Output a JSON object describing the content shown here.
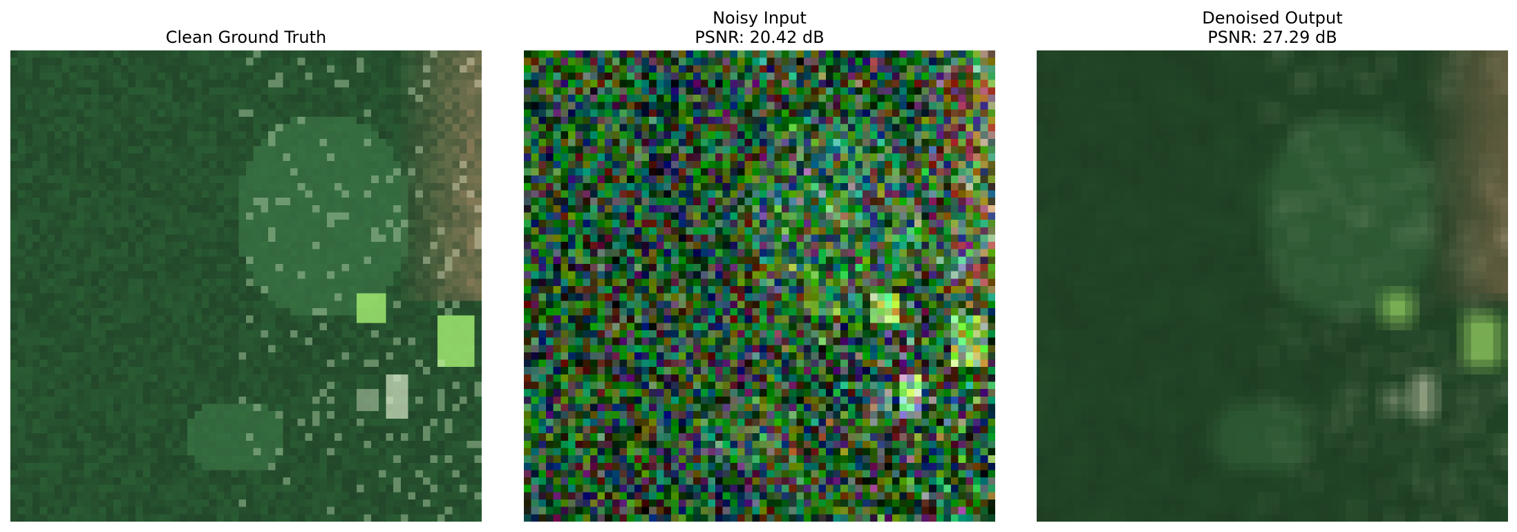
{
  "panels": [
    {
      "id": "clean",
      "title_lines": [
        "Clean Ground Truth"
      ],
      "image": "satellite-vegetation-patch-clean"
    },
    {
      "id": "noisy",
      "title_lines": [
        "Noisy Input",
        "PSNR: 20.42 dB"
      ],
      "image": "satellite-vegetation-patch-noisy"
    },
    {
      "id": "denoised",
      "title_lines": [
        "Denoised Output",
        "PSNR: 27.29 dB"
      ],
      "image": "satellite-vegetation-patch-denoised"
    }
  ],
  "palette": {
    "background": "#ffffff",
    "vegetation_dark": "#1e3a24",
    "vegetation_mid": "#2f6b3a",
    "vegetation_bright": "#9fe870",
    "field_light": "#3d7a48",
    "soil_tan": "#8a7a58",
    "structure_white": "#d8e8c8"
  }
}
